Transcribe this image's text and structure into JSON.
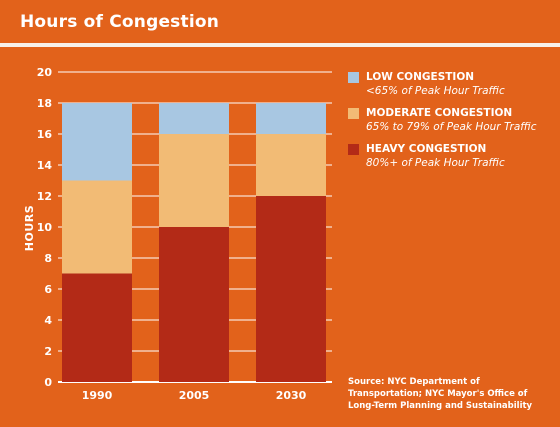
{
  "header": {
    "title": "Hours of Congestion"
  },
  "chart_data": {
    "type": "bar",
    "stacked": true,
    "categories": [
      "1990",
      "2005",
      "2030"
    ],
    "series": [
      {
        "name": "HEAVY CONGESTION",
        "values": [
          7,
          10,
          12
        ],
        "color": "#b32a17"
      },
      {
        "name": "MODERATE CONGESTION",
        "values": [
          6,
          6,
          4
        ],
        "color": "#f2bb75"
      },
      {
        "name": "LOW CONGESTION",
        "values": [
          5,
          2,
          2
        ],
        "color": "#a8c7e2"
      }
    ],
    "ylabel": "HOURS",
    "ylim": [
      0,
      20
    ],
    "yticks": [
      "0",
      "2",
      "4",
      "6",
      "8",
      "10",
      "12",
      "14",
      "16",
      "18",
      "20"
    ],
    "grid": true,
    "legend_position": "right"
  },
  "legend": {
    "items": [
      {
        "title": "LOW CONGESTION",
        "subtitle": "<65% of Peak Hour Traffic",
        "color": "#a8c7e2"
      },
      {
        "title": "MODERATE CONGESTION",
        "subtitle": "65% to 79% of Peak Hour Traffic",
        "color": "#f2bb75"
      },
      {
        "title": "HEAVY CONGESTION",
        "subtitle": "80%+ of Peak Hour Traffic",
        "color": "#b32a17"
      }
    ]
  },
  "source": "Source: NYC Department of Transportation; NYC Mayor's Office of Long-Term Planning and Sustainability"
}
